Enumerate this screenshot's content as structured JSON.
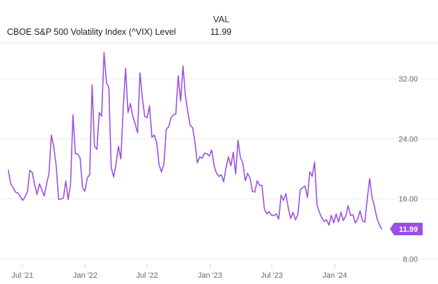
{
  "legend": {
    "header": "VAL",
    "series_name": "CBOE S&P 500 Volatility Index (^VIX) Level",
    "latest_value": "11.99"
  },
  "chart_data": {
    "type": "line",
    "title": "",
    "xlabel": "",
    "ylabel": "",
    "ylim": [
      8,
      36
    ],
    "y_ticks": [
      "8.00",
      "16.00",
      "24.00",
      "32.00"
    ],
    "x_ticks": [
      "Jul '21",
      "Jan '22",
      "Jul '22",
      "Jan '23",
      "Jul '23",
      "Jan '24"
    ],
    "grid": "horizontal",
    "legend": "top-left",
    "line_color": "#9b4fe3",
    "latest_label": "11.99",
    "series": [
      {
        "name": "CBOE S&P 500 Volatility Index (^VIX) Level",
        "x": [
          "2021-05-21",
          "2021-05-28",
          "2021-06-04",
          "2021-06-11",
          "2021-06-18",
          "2021-06-25",
          "2021-07-02",
          "2021-07-09",
          "2021-07-16",
          "2021-07-23",
          "2021-07-30",
          "2021-08-06",
          "2021-08-13",
          "2021-08-20",
          "2021-08-27",
          "2021-09-03",
          "2021-09-10",
          "2021-09-17",
          "2021-09-24",
          "2021-10-01",
          "2021-10-08",
          "2021-10-15",
          "2021-10-22",
          "2021-10-29",
          "2021-11-05",
          "2021-11-12",
          "2021-11-19",
          "2021-11-26",
          "2021-12-03",
          "2021-12-10",
          "2021-12-17",
          "2021-12-24",
          "2021-12-31",
          "2022-01-07",
          "2022-01-14",
          "2022-01-21",
          "2022-01-28",
          "2022-02-04",
          "2022-02-11",
          "2022-02-18",
          "2022-02-25",
          "2022-03-04",
          "2022-03-11",
          "2022-03-18",
          "2022-03-25",
          "2022-04-01",
          "2022-04-08",
          "2022-04-15",
          "2022-04-22",
          "2022-04-29",
          "2022-05-06",
          "2022-05-13",
          "2022-05-20",
          "2022-05-27",
          "2022-06-03",
          "2022-06-10",
          "2022-06-17",
          "2022-06-24",
          "2022-07-01",
          "2022-07-08",
          "2022-07-15",
          "2022-07-22",
          "2022-07-29",
          "2022-08-05",
          "2022-08-12",
          "2022-08-19",
          "2022-08-26",
          "2022-09-02",
          "2022-09-09",
          "2022-09-16",
          "2022-09-23",
          "2022-09-30",
          "2022-10-07",
          "2022-10-14",
          "2022-10-21",
          "2022-10-28",
          "2022-11-04",
          "2022-11-11",
          "2022-11-18",
          "2022-11-25",
          "2022-12-02",
          "2022-12-09",
          "2022-12-16",
          "2022-12-23",
          "2022-12-30",
          "2023-01-06",
          "2023-01-13",
          "2023-01-20",
          "2023-01-27",
          "2023-02-03",
          "2023-02-10",
          "2023-02-17",
          "2023-02-24",
          "2023-03-03",
          "2023-03-10",
          "2023-03-17",
          "2023-03-24",
          "2023-03-31",
          "2023-04-07",
          "2023-04-14",
          "2023-04-21",
          "2023-04-28",
          "2023-05-05",
          "2023-05-12",
          "2023-05-19",
          "2023-05-26",
          "2023-06-02",
          "2023-06-09",
          "2023-06-16",
          "2023-06-23",
          "2023-06-30",
          "2023-07-07",
          "2023-07-14",
          "2023-07-21",
          "2023-07-28",
          "2023-08-04",
          "2023-08-11",
          "2023-08-18",
          "2023-08-25",
          "2023-09-01",
          "2023-09-08",
          "2023-09-15",
          "2023-09-22",
          "2023-09-29",
          "2023-10-06",
          "2023-10-13",
          "2023-10-20",
          "2023-10-27",
          "2023-11-03",
          "2023-11-10",
          "2023-11-17",
          "2023-11-24",
          "2023-12-01",
          "2023-12-08",
          "2023-12-15",
          "2023-12-22",
          "2023-12-29",
          "2024-01-05",
          "2024-01-12",
          "2024-01-19",
          "2024-01-26",
          "2024-02-02",
          "2024-02-09",
          "2024-02-16",
          "2024-02-23",
          "2024-03-01",
          "2024-03-08",
          "2024-03-15",
          "2024-03-22",
          "2024-03-29",
          "2024-04-05",
          "2024-04-12",
          "2024-04-19",
          "2024-04-26",
          "2024-05-03",
          "2024-05-10",
          "2024-05-17"
        ],
        "values": [
          19.8,
          18.0,
          17.5,
          16.9,
          16.8,
          16.3,
          15.8,
          16.3,
          17.0,
          19.8,
          19.5,
          17.9,
          16.6,
          18.0,
          17.2,
          16.4,
          18.0,
          19.4,
          24.5,
          22.9,
          20.4,
          15.9,
          16.0,
          16.1,
          18.4,
          15.9,
          17.9,
          27.2,
          22.0,
          22.0,
          21.4,
          17.5,
          17.0,
          18.8,
          19.2,
          31.2,
          23.0,
          22.6,
          27.5,
          27.0,
          35.5,
          31.5,
          30.8,
          20.2,
          18.9,
          20.6,
          23.0,
          21.3,
          28.0,
          33.4,
          27.5,
          28.7,
          27.0,
          26.0,
          24.8,
          32.8,
          29.5,
          27.0,
          26.8,
          28.4,
          24.2,
          24.5,
          23.5,
          20.5,
          19.6,
          20.6,
          25.3,
          25.6,
          26.8,
          27.2,
          27.3,
          32.4,
          29.0,
          33.7,
          29.7,
          27.6,
          25.8,
          25.5,
          23.5,
          20.8,
          21.6,
          21.4,
          22.1,
          22.0,
          21.7,
          22.5,
          20.4,
          19.4,
          19.0,
          19.2,
          18.3,
          20.2,
          21.6,
          20.4,
          22.2,
          19.3,
          23.8,
          21.5,
          20.8,
          18.4,
          19.4,
          18.8,
          17.0,
          16.9,
          18.4,
          17.8,
          17.8,
          14.7,
          14.0,
          14.3,
          13.8,
          13.8,
          14.0,
          13.3,
          16.5,
          15.8,
          16.7,
          14.8,
          13.4,
          14.2,
          13.2,
          13.9,
          17.2,
          17.5,
          17.7,
          16.2,
          19.6,
          19.0,
          20.9,
          15.2,
          14.2,
          13.5,
          13.0,
          13.2,
          12.5,
          13.8,
          12.8,
          14.0,
          12.9,
          14.2,
          13.1,
          13.7,
          15.1,
          13.8,
          13.9,
          12.8,
          13.3,
          14.4,
          13.1,
          12.9,
          16.0,
          18.7,
          16.2,
          15.0,
          13.5,
          12.6,
          11.99
        ]
      }
    ]
  }
}
